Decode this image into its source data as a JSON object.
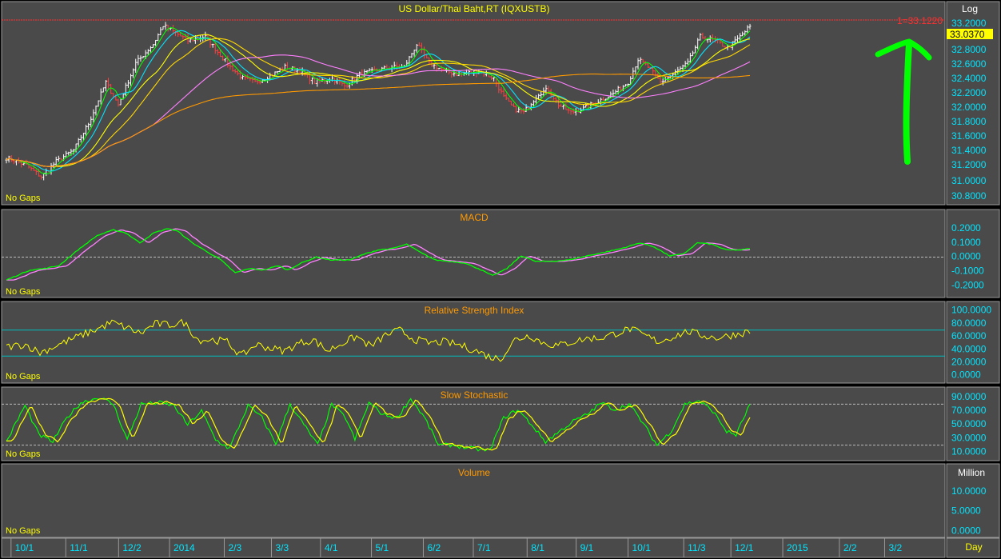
{
  "chart_data": [
    {
      "type": "line",
      "title": "US Dollar/Thai Baht,RT (IQXUSTB)",
      "scale_label": "Log",
      "footer_label": "No Gaps",
      "ylim": [
        30.7,
        33.28
      ],
      "yticks": [
        "33.2000",
        "32.8000",
        "32.6000",
        "32.4000",
        "32.2000",
        "32.0000",
        "31.8000",
        "31.6000",
        "31.4000",
        "31.2000",
        "31.0000",
        "30.8000"
      ],
      "yticks_upper": [
        "33.2000"
      ],
      "yticks_lower": [
        "32.8000",
        "32.6000",
        "32.4000",
        "32.2000",
        "32.0000",
        "31.8000",
        "31.6000",
        "31.4000",
        "31.2000",
        "31.0000",
        "30.8000"
      ],
      "ytick_values": [
        33.2,
        32.8,
        32.6,
        32.4,
        32.2,
        32.0,
        31.8,
        31.6,
        31.4,
        31.2,
        31.0,
        30.8
      ],
      "last_price_label": "33.0370",
      "last_price_value": 33.037,
      "reference_line_label": "1=33.1220",
      "reference_line_value": 33.122,
      "price_anchors": [
        [
          0,
          31.3
        ],
        [
          8,
          31.2
        ],
        [
          14,
          31.05
        ],
        [
          20,
          31.25
        ],
        [
          27,
          31.4
        ],
        [
          33,
          31.75
        ],
        [
          40,
          32.3
        ],
        [
          45,
          32.0
        ],
        [
          52,
          32.55
        ],
        [
          59,
          32.8
        ],
        [
          63,
          33.05
        ],
        [
          68,
          32.95
        ],
        [
          73,
          32.85
        ],
        [
          80,
          32.9
        ],
        [
          85,
          32.7
        ],
        [
          90,
          32.5
        ],
        [
          95,
          32.35
        ],
        [
          100,
          32.3
        ],
        [
          107,
          32.4
        ],
        [
          112,
          32.5
        ],
        [
          118,
          32.45
        ],
        [
          124,
          32.3
        ],
        [
          131,
          32.35
        ],
        [
          136,
          32.25
        ],
        [
          142,
          32.4
        ],
        [
          148,
          32.45
        ],
        [
          155,
          32.5
        ],
        [
          160,
          32.5
        ],
        [
          165,
          32.8
        ],
        [
          170,
          32.55
        ],
        [
          176,
          32.45
        ],
        [
          182,
          32.4
        ],
        [
          190,
          32.45
        ],
        [
          196,
          32.35
        ],
        [
          200,
          32.1
        ],
        [
          204,
          31.95
        ],
        [
          208,
          31.9
        ],
        [
          214,
          32.15
        ],
        [
          218,
          32.2
        ],
        [
          222,
          32.0
        ],
        [
          227,
          31.9
        ],
        [
          232,
          31.95
        ],
        [
          238,
          32.05
        ],
        [
          244,
          32.15
        ],
        [
          250,
          32.3
        ],
        [
          254,
          32.6
        ],
        [
          258,
          32.5
        ],
        [
          263,
          32.3
        ],
        [
          268,
          32.4
        ],
        [
          274,
          32.55
        ],
        [
          279,
          32.9
        ],
        [
          285,
          32.85
        ],
        [
          290,
          32.75
        ],
        [
          295,
          32.9
        ],
        [
          299,
          33.04
        ]
      ],
      "ma_periods": [
        5,
        10,
        20,
        30,
        60,
        200
      ],
      "ma_colors": [
        "#00ff00",
        "#00e5ff",
        "#ffff00",
        "#ffd700",
        "#ff80ff",
        "#ff9900"
      ]
    },
    {
      "type": "line",
      "title": "MACD",
      "footer_label": "No Gaps",
      "ylim": [
        -0.26,
        0.26
      ],
      "yticks": [
        "0.2000",
        "0.1000",
        "0.0000",
        "-0.1000",
        "-0.2000"
      ],
      "ytick_values": [
        0.2,
        0.1,
        0.0,
        -0.1,
        -0.2
      ],
      "zero_line": 0,
      "anchors": [
        [
          0,
          -0.16
        ],
        [
          10,
          -0.09
        ],
        [
          16,
          -0.08
        ],
        [
          22,
          -0.06
        ],
        [
          30,
          0.05
        ],
        [
          38,
          0.15
        ],
        [
          45,
          0.19
        ],
        [
          50,
          0.17
        ],
        [
          56,
          0.1
        ],
        [
          62,
          0.17
        ],
        [
          68,
          0.2
        ],
        [
          72,
          0.18
        ],
        [
          78,
          0.1
        ],
        [
          85,
          0.03
        ],
        [
          90,
          -0.02
        ],
        [
          96,
          -0.11
        ],
        [
          102,
          -0.08
        ],
        [
          108,
          -0.09
        ],
        [
          114,
          -0.06
        ],
        [
          118,
          -0.09
        ],
        [
          124,
          -0.04
        ],
        [
          130,
          0.0
        ],
        [
          136,
          -0.02
        ],
        [
          144,
          -0.02
        ],
        [
          150,
          0.02
        ],
        [
          156,
          0.05
        ],
        [
          162,
          0.06
        ],
        [
          168,
          0.09
        ],
        [
          174,
          0.03
        ],
        [
          180,
          -0.02
        ],
        [
          186,
          -0.03
        ],
        [
          192,
          -0.04
        ],
        [
          198,
          -0.08
        ],
        [
          204,
          -0.13
        ],
        [
          210,
          -0.08
        ],
        [
          216,
          0.01
        ],
        [
          222,
          -0.03
        ],
        [
          228,
          -0.03
        ],
        [
          236,
          -0.02
        ],
        [
          244,
          0.01
        ],
        [
          250,
          0.03
        ],
        [
          258,
          0.06
        ],
        [
          266,
          0.1
        ],
        [
          272,
          0.07
        ],
        [
          278,
          0.01
        ],
        [
          284,
          0.02
        ],
        [
          290,
          0.1
        ],
        [
          296,
          0.09
        ],
        [
          302,
          0.05
        ],
        [
          308,
          0.05
        ],
        [
          312,
          0.06
        ]
      ],
      "series_colors": [
        "#ff80ff",
        "#00ff00"
      ]
    },
    {
      "type": "line",
      "title": "Relative Strength Index",
      "footer_label": "No Gaps",
      "ylim": [
        -8,
        108
      ],
      "yticks": [
        "100.0000",
        "80.0000",
        "60.0000",
        "40.0000",
        "20.0000",
        "0.0000"
      ],
      "ytick_values": [
        100,
        80,
        60,
        40,
        20,
        0
      ],
      "reference_lines": [
        70,
        30
      ],
      "anchors": [
        [
          0,
          44
        ],
        [
          8,
          48
        ],
        [
          14,
          35
        ],
        [
          22,
          48
        ],
        [
          30,
          60
        ],
        [
          38,
          72
        ],
        [
          44,
          82
        ],
        [
          50,
          74
        ],
        [
          56,
          65
        ],
        [
          62,
          80
        ],
        [
          68,
          78
        ],
        [
          74,
          82
        ],
        [
          80,
          55
        ],
        [
          86,
          55
        ],
        [
          92,
          52
        ],
        [
          98,
          30
        ],
        [
          104,
          48
        ],
        [
          110,
          42
        ],
        [
          116,
          38
        ],
        [
          122,
          50
        ],
        [
          128,
          55
        ],
        [
          134,
          38
        ],
        [
          140,
          50
        ],
        [
          146,
          60
        ],
        [
          152,
          45
        ],
        [
          158,
          62
        ],
        [
          164,
          70
        ],
        [
          170,
          56
        ],
        [
          176,
          50
        ],
        [
          182,
          52
        ],
        [
          188,
          48
        ],
        [
          196,
          38
        ],
        [
          202,
          28
        ],
        [
          206,
          26
        ],
        [
          212,
          55
        ],
        [
          218,
          62
        ],
        [
          224,
          50
        ],
        [
          230,
          46
        ],
        [
          236,
          52
        ],
        [
          242,
          57
        ],
        [
          248,
          58
        ],
        [
          254,
          65
        ],
        [
          260,
          72
        ],
        [
          266,
          62
        ],
        [
          272,
          52
        ],
        [
          278,
          60
        ],
        [
          284,
          68
        ],
        [
          290,
          62
        ],
        [
          296,
          58
        ],
        [
          302,
          62
        ],
        [
          310,
          68
        ]
      ],
      "line_color": "#ffff00"
    },
    {
      "type": "line",
      "title": "Slow Stochastic",
      "footer_label": "No Gaps",
      "ylim": [
        2,
        98
      ],
      "yticks": [
        "90.0000",
        "70.0000",
        "50.0000",
        "30.0000",
        "10.0000"
      ],
      "ytick_values": [
        90,
        70,
        50,
        30,
        10
      ],
      "reference_lines": [
        80,
        20
      ],
      "anchors": [
        [
          0,
          25
        ],
        [
          8,
          78
        ],
        [
          14,
          35
        ],
        [
          20,
          25
        ],
        [
          26,
          60
        ],
        [
          32,
          82
        ],
        [
          40,
          90
        ],
        [
          46,
          80
        ],
        [
          52,
          28
        ],
        [
          58,
          80
        ],
        [
          66,
          82
        ],
        [
          72,
          78
        ],
        [
          78,
          50
        ],
        [
          84,
          70
        ],
        [
          90,
          28
        ],
        [
          96,
          15
        ],
        [
          104,
          78
        ],
        [
          110,
          60
        ],
        [
          116,
          22
        ],
        [
          122,
          80
        ],
        [
          128,
          50
        ],
        [
          134,
          20
        ],
        [
          140,
          80
        ],
        [
          146,
          60
        ],
        [
          150,
          28
        ],
        [
          156,
          82
        ],
        [
          162,
          65
        ],
        [
          168,
          60
        ],
        [
          174,
          88
        ],
        [
          180,
          60
        ],
        [
          186,
          20
        ],
        [
          192,
          20
        ],
        [
          200,
          15
        ],
        [
          208,
          12
        ],
        [
          214,
          60
        ],
        [
          220,
          72
        ],
        [
          226,
          50
        ],
        [
          232,
          25
        ],
        [
          238,
          40
        ],
        [
          244,
          55
        ],
        [
          250,
          65
        ],
        [
          256,
          82
        ],
        [
          262,
          72
        ],
        [
          268,
          80
        ],
        [
          274,
          52
        ],
        [
          280,
          20
        ],
        [
          286,
          40
        ],
        [
          292,
          80
        ],
        [
          298,
          85
        ],
        [
          304,
          70
        ],
        [
          310,
          40
        ],
        [
          314,
          35
        ],
        [
          320,
          80
        ]
      ],
      "series_colors": [
        "#00ff00",
        "#ffff00"
      ]
    },
    {
      "type": "bar",
      "title": "Volume",
      "footer_label": "No Gaps",
      "unit_label": "Million",
      "ylim": [
        -1.2,
        13
      ],
      "yticks": [
        "10.0000",
        "5.0000",
        "0.0000"
      ],
      "ytick_values": [
        10,
        5,
        0
      ]
    }
  ],
  "x_axis": {
    "ticks": [
      {
        "label": "10/1",
        "pos": 0.01
      },
      {
        "label": "11/1",
        "pos": 0.068
      },
      {
        "label": "12/2",
        "pos": 0.124
      },
      {
        "label": "2014",
        "pos": 0.178
      },
      {
        "label": "2/3",
        "pos": 0.236
      },
      {
        "label": "3/3",
        "pos": 0.286
      },
      {
        "label": "4/1",
        "pos": 0.338
      },
      {
        "label": "5/1",
        "pos": 0.392
      },
      {
        "label": "6/2",
        "pos": 0.447
      },
      {
        "label": "7/1",
        "pos": 0.5
      },
      {
        "label": "8/1",
        "pos": 0.557
      },
      {
        "label": "9/1",
        "pos": 0.609
      },
      {
        "label": "10/1",
        "pos": 0.664
      },
      {
        "label": "11/3",
        "pos": 0.723
      },
      {
        "label": "12/1",
        "pos": 0.773
      },
      {
        "label": "2015",
        "pos": 0.828
      },
      {
        "label": "2/2",
        "pos": 0.888
      },
      {
        "label": "3/2",
        "pos": 0.936
      }
    ],
    "unit_label": "Day"
  },
  "colors": {
    "background": "#4a4a4a",
    "frame": "#000000",
    "border": "#9a9a9a",
    "axis_text": "#00e5ff",
    "title_text": "#ff9900",
    "price_title_text": "#ffff00",
    "nogaps_text": "#ffff00",
    "ref_line": "#ff3030",
    "annotation_arrow": "#00ff00",
    "grid_dash": "#bbbbbb",
    "rsi_ref": "#00bcbc"
  }
}
